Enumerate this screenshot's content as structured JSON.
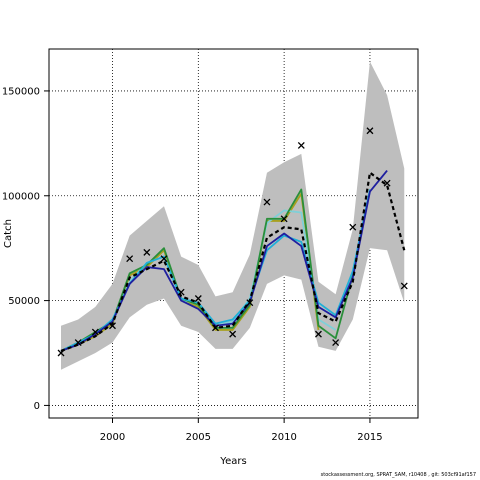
{
  "chart_data": {
    "type": "line",
    "title": "",
    "xlabel": "Years",
    "ylabel": "Catch",
    "xlim": [
      1996.3,
      2017.8
    ],
    "ylim": [
      -6000,
      170000
    ],
    "grid": true,
    "x_ticks": [
      2000,
      2005,
      2010,
      2015
    ],
    "x_tick_labels": [
      "2000",
      "2005",
      "2010",
      "2015"
    ],
    "y_ticks": [
      0,
      50000,
      100000,
      150000
    ],
    "y_tick_labels": [
      "0",
      "50000",
      "100000",
      "150000"
    ],
    "confidence_band": {
      "x": [
        1997,
        1998,
        1999,
        2000,
        2001,
        2002,
        2003,
        2004,
        2005,
        2006,
        2007,
        2008,
        2009,
        2010,
        2011,
        2012,
        2013,
        2014,
        2015,
        2016,
        2017
      ],
      "lower": [
        17000,
        21000,
        25000,
        30000,
        42000,
        48000,
        51000,
        38000,
        35000,
        27000,
        27000,
        37000,
        58000,
        62000,
        60000,
        28000,
        26000,
        41000,
        75000,
        74000,
        49000
      ],
      "upper": [
        38000,
        41000,
        47000,
        58000,
        81000,
        88000,
        95000,
        71000,
        67000,
        52000,
        54000,
        72000,
        111000,
        116000,
        120000,
        59000,
        53000,
        84000,
        164000,
        148000,
        113000
      ]
    },
    "series": [
      {
        "color": "#000000",
        "dashed": true,
        "x": [
          1997,
          1998,
          1999,
          2000,
          2001,
          2002,
          2003,
          2004,
          2005,
          2006,
          2007,
          2008,
          2009,
          2010,
          2011,
          2012,
          2013,
          2014,
          2015,
          2016,
          2017
        ],
        "y": [
          26000,
          29000,
          33000,
          39000,
          61000,
          65000,
          69000,
          52000,
          49000,
          37000,
          38000,
          50000,
          80000,
          85000,
          84000,
          44000,
          40000,
          59000,
          111000,
          105000,
          74000
        ]
      },
      {
        "color": "#1f1fa0",
        "x": [
          1997,
          1998,
          1999,
          2000,
          2001,
          2002,
          2003,
          2004,
          2005,
          2006,
          2007,
          2008,
          2009,
          2010,
          2011,
          2012,
          2013,
          2014,
          2015,
          2016
        ],
        "y": [
          26000,
          29000,
          34000,
          40000,
          58000,
          66000,
          65000,
          50000,
          46000,
          38000,
          39000,
          49000,
          76000,
          82000,
          76000,
          47000,
          42000,
          61000,
          102000,
          112000
        ]
      },
      {
        "color": "#20b0d8",
        "x": [
          1997,
          1998,
          1999,
          2000,
          2001,
          2002,
          2003,
          2004,
          2005,
          2006,
          2007,
          2008,
          2009,
          2010,
          2011,
          2012,
          2013,
          2014,
          2015
        ],
        "y": [
          26000,
          30000,
          34000,
          41000,
          58000,
          68000,
          71000,
          51000,
          49000,
          39000,
          41000,
          50000,
          74000,
          81000,
          78000,
          49000,
          43000,
          64000,
          103000
        ]
      },
      {
        "color": "#2a8f3a",
        "x": [
          1997,
          1998,
          1999,
          2000,
          2001,
          2002,
          2003,
          2004,
          2005,
          2006,
          2007,
          2008,
          2009,
          2010,
          2011,
          2012,
          2013,
          2014
        ],
        "y": [
          26000,
          30000,
          35000,
          40000,
          63000,
          67000,
          75000,
          51000,
          48000,
          37000,
          37000,
          48000,
          89000,
          89000,
          103000,
          38000,
          32000,
          62000
        ]
      },
      {
        "color": "#7fd0d8",
        "x": [
          1997,
          1998,
          1999,
          2000,
          2001,
          2002,
          2003,
          2004,
          2005,
          2006,
          2007,
          2008,
          2009,
          2010,
          2011,
          2012,
          2013
        ],
        "y": [
          26000,
          30000,
          34000,
          41000,
          59000,
          68000,
          71000,
          50000,
          49000,
          38000,
          40000,
          51000,
          87000,
          93000,
          92000,
          41000,
          36000
        ]
      },
      {
        "color": "#a8a020",
        "x": [
          1997,
          1998,
          1999,
          2000,
          2001,
          2002,
          2003,
          2004,
          2005,
          2006,
          2007,
          2008,
          2009,
          2010,
          2011,
          2012
        ],
        "y": [
          26000,
          29000,
          33000,
          39000,
          62000,
          66000,
          74000,
          50000,
          47000,
          36000,
          36000,
          47000,
          88000,
          88000,
          101000,
          36000
        ]
      }
    ],
    "observed": {
      "marker": "x",
      "x": [
        1997,
        1998,
        1999,
        2000,
        2001,
        2002,
        2003,
        2004,
        2005,
        2006,
        2007,
        2008,
        2009,
        2010,
        2011,
        2012,
        2013,
        2014,
        2015,
        2016,
        2017
      ],
      "y": [
        25000,
        30000,
        35000,
        38000,
        70000,
        73000,
        70000,
        54000,
        51000,
        37000,
        34000,
        49000,
        97000,
        89000,
        124000,
        34000,
        30000,
        85000,
        131000,
        106000,
        57000
      ]
    }
  },
  "footer_text": "stockassessment.org, SPRAT_SAM, r10408 , git: 503cf91af157"
}
